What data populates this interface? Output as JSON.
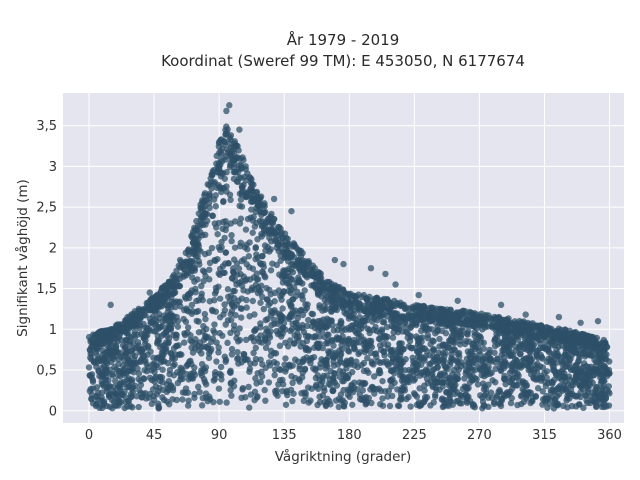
{
  "chart_data": {
    "type": "scatter",
    "title": "År 1979 - 2019",
    "subtitle": "Koordinat (Sweref 99 TM): E 453050, N 6177674",
    "xlabel": "Vågriktning (grader)",
    "ylabel": "Signifikant våghöjd (m)",
    "xlim": [
      -18,
      370
    ],
    "ylim": [
      -0.15,
      3.9
    ],
    "x_ticks": [
      0,
      45,
      90,
      135,
      180,
      225,
      270,
      315,
      360
    ],
    "x_tick_labels": [
      "0",
      "45",
      "90",
      "135",
      "180",
      "225",
      "270",
      "315",
      "360"
    ],
    "y_ticks": [
      0,
      0.5,
      1,
      1.5,
      2,
      2.5,
      3,
      3.5
    ],
    "y_tick_labels": [
      "0",
      "0,5",
      "1",
      "1,5",
      "2",
      "2,5",
      "3",
      "3,5"
    ],
    "grid": true,
    "legend": "none",
    "marker_color": "#2e5068",
    "background_color": "#e5e5ef",
    "envelope_upper": [
      {
        "x": 0,
        "y": 0.95
      },
      {
        "x": 15,
        "y": 1.0
      },
      {
        "x": 30,
        "y": 1.2
      },
      {
        "x": 45,
        "y": 1.4
      },
      {
        "x": 60,
        "y": 1.7
      },
      {
        "x": 70,
        "y": 2.1
      },
      {
        "x": 80,
        "y": 2.7
      },
      {
        "x": 90,
        "y": 3.3
      },
      {
        "x": 95,
        "y": 3.6
      },
      {
        "x": 100,
        "y": 3.4
      },
      {
        "x": 110,
        "y": 3.0
      },
      {
        "x": 120,
        "y": 2.6
      },
      {
        "x": 135,
        "y": 2.2
      },
      {
        "x": 150,
        "y": 1.9
      },
      {
        "x": 165,
        "y": 1.6
      },
      {
        "x": 180,
        "y": 1.45
      },
      {
        "x": 200,
        "y": 1.4
      },
      {
        "x": 225,
        "y": 1.3
      },
      {
        "x": 250,
        "y": 1.25
      },
      {
        "x": 270,
        "y": 1.2
      },
      {
        "x": 300,
        "y": 1.1
      },
      {
        "x": 330,
        "y": 1.0
      },
      {
        "x": 360,
        "y": 0.85
      }
    ],
    "outliers": [
      {
        "x": 97,
        "y": 3.75
      },
      {
        "x": 95,
        "y": 3.68
      },
      {
        "x": 104,
        "y": 3.45
      },
      {
        "x": 128,
        "y": 2.6
      },
      {
        "x": 140,
        "y": 2.45
      },
      {
        "x": 170,
        "y": 1.85
      },
      {
        "x": 176,
        "y": 1.8
      },
      {
        "x": 195,
        "y": 1.75
      },
      {
        "x": 205,
        "y": 1.68
      },
      {
        "x": 212,
        "y": 1.55
      },
      {
        "x": 228,
        "y": 1.42
      },
      {
        "x": 255,
        "y": 1.35
      },
      {
        "x": 285,
        "y": 1.3
      },
      {
        "x": 302,
        "y": 1.18
      },
      {
        "x": 325,
        "y": 1.15
      },
      {
        "x": 340,
        "y": 1.08
      },
      {
        "x": 352,
        "y": 1.1
      },
      {
        "x": 15,
        "y": 1.3
      },
      {
        "x": 42,
        "y": 1.45
      },
      {
        "x": 63,
        "y": 1.85
      },
      {
        "x": 83,
        "y": 2.55
      }
    ]
  }
}
